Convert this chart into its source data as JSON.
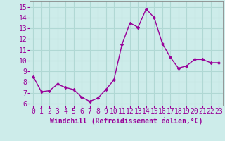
{
  "x": [
    0,
    1,
    2,
    3,
    4,
    5,
    6,
    7,
    8,
    9,
    10,
    11,
    12,
    13,
    14,
    15,
    16,
    17,
    18,
    19,
    20,
    21,
    22,
    23
  ],
  "y": [
    8.5,
    7.1,
    7.2,
    7.8,
    7.5,
    7.3,
    6.6,
    6.2,
    6.5,
    7.3,
    8.2,
    11.5,
    13.5,
    13.1,
    14.8,
    14.0,
    11.6,
    10.3,
    9.3,
    9.5,
    10.1,
    10.1,
    9.8,
    9.8
  ],
  "line_color": "#990099",
  "marker": "D",
  "marker_size": 2.2,
  "xlabel": "Windchill (Refroidissement éolien,°C)",
  "ylabel_ticks": [
    6,
    7,
    8,
    9,
    10,
    11,
    12,
    13,
    14,
    15
  ],
  "xlim": [
    -0.5,
    23.5
  ],
  "ylim": [
    5.8,
    15.5
  ],
  "bg_color": "#cdecea",
  "grid_color": "#b0d8d4",
  "tick_label_color": "#990099",
  "xlabel_color": "#990099",
  "xlabel_fontsize": 7,
  "tick_fontsize": 7,
  "line_width": 1.0
}
